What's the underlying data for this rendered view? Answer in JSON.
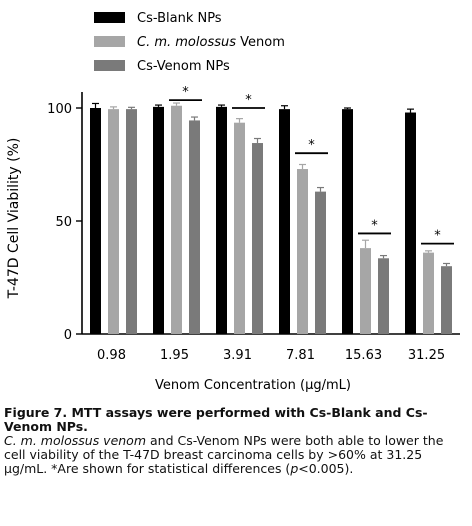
{
  "chart_data": {
    "type": "bar",
    "xlabel": "Venom Concentration (µg/mL)",
    "ylabel": "T-47D Cell Viability (%)",
    "ylim": [
      0,
      100
    ],
    "yticks": [
      "0",
      "50",
      "100"
    ],
    "categories": [
      "0.98",
      "1.95",
      "3.91",
      "7.81",
      "15.63",
      "31.25"
    ],
    "series": [
      {
        "name": "Cs-Blank NPs",
        "color": "#000000",
        "values": [
          100,
          100.5,
          100.5,
          99.5,
          99.5,
          98
        ],
        "errors": [
          2.0,
          0.8,
          0.8,
          1.5,
          0.5,
          1.5
        ]
      },
      {
        "name": "C. m. molossus Venom",
        "color": "#a6a6a6",
        "values": [
          99.5,
          101,
          93.5,
          73,
          38,
          36
        ],
        "errors": [
          1.0,
          1.2,
          1.8,
          2.0,
          3.5,
          0.8
        ]
      },
      {
        "name": "Cs-Venom NPs",
        "color": "#7a7a7a",
        "values": [
          99.5,
          94.5,
          84.5,
          63,
          33.5,
          30
        ],
        "errors": [
          0.8,
          1.5,
          2.0,
          1.8,
          1.2,
          1.2
        ]
      }
    ],
    "significance": [
      {
        "category_index": 1,
        "label": "*",
        "level": 103.5
      },
      {
        "category_index": 2,
        "label": "*",
        "level": 100
      },
      {
        "category_index": 3,
        "label": "*",
        "level": 80
      },
      {
        "category_index": 4,
        "label": "*",
        "level": 44.5
      },
      {
        "category_index": 5,
        "label": "*",
        "level": 40
      }
    ],
    "legend_position": "top-left",
    "grid": false
  },
  "caption": {
    "figure_title": "Figure 7. MTT assays were performed with Cs-Blank and Cs-Venom NPs.",
    "body_italic": "C. m. molossus venom",
    "body_rest": " and Cs-Venom NPs were both able to lower the cell viability of the T-47D breast carcinoma cells by >60% at 31.25 µg/mL. *Are shown for statistical differences (",
    "p_italic": "p",
    "p_rest": "<0.005)."
  }
}
